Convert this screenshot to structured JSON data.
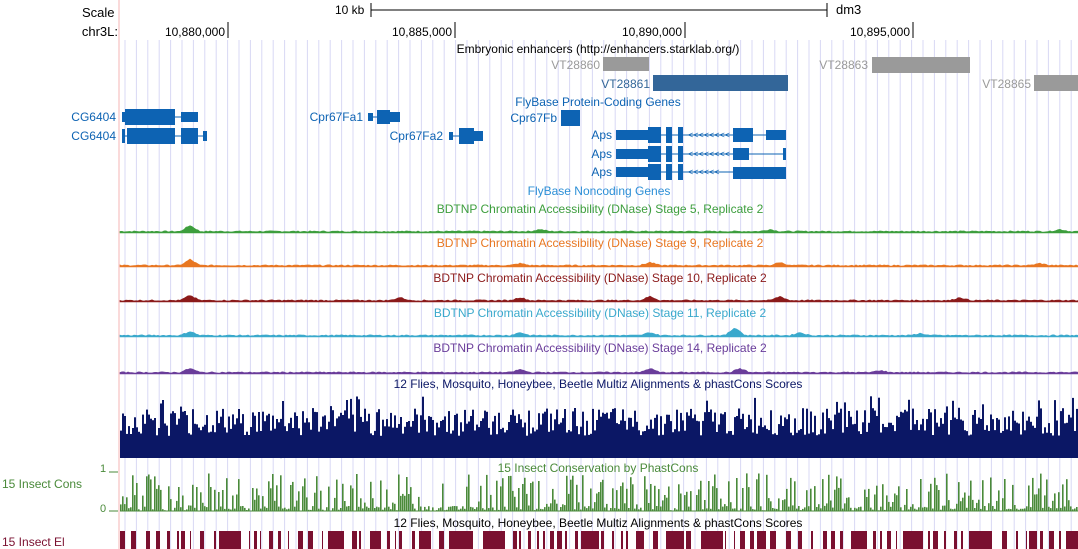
{
  "header": {
    "scale_label": "Scale",
    "scale_value": "10 kb",
    "assembly": "dm3",
    "chrom_label": "chr3L:",
    "positions": [
      "10,880,000",
      "10,885,000",
      "10,890,000",
      "10,895,000"
    ]
  },
  "tracks": {
    "enhancers": {
      "title": "Embryonic enhancers (http://enhancers.starklab.org/)",
      "items": [
        {
          "name": "VT28860",
          "highlight": false
        },
        {
          "name": "VT28861",
          "highlight": true
        },
        {
          "name": "VT28863",
          "highlight": false
        },
        {
          "name": "VT28865",
          "highlight": false
        }
      ]
    },
    "genes": {
      "title": "FlyBase Protein-Coding Genes",
      "items": [
        {
          "name": "CG6404"
        },
        {
          "name": "CG6404"
        },
        {
          "name": "Cpr67Fa1"
        },
        {
          "name": "Cpr67Fa2"
        },
        {
          "name": "Cpr67Fb"
        },
        {
          "name": "Aps"
        },
        {
          "name": "Aps"
        },
        {
          "name": "Aps"
        }
      ]
    },
    "noncoding": {
      "title": "FlyBase Noncoding Genes"
    },
    "dnase": [
      {
        "title": "BDTNP Chromatin Accessibility (DNase) Stage 5, Replicate 2",
        "color": "#3d9e3d"
      },
      {
        "title": "BDTNP Chromatin Accessibility (DNase) Stage 9, Replicate 2",
        "color": "#e87722"
      },
      {
        "title": "BDTNP Chromatin Accessibility (DNase) Stage 10, Replicate 2",
        "color": "#8b1a1a"
      },
      {
        "title": "BDTNP Chromatin Accessibility (DNase) Stage 11, Replicate 2",
        "color": "#3aa9cc"
      },
      {
        "title": "BDTNP Chromatin Accessibility (DNase) Stage 14, Replicate 2",
        "color": "#6a3d9a"
      }
    ],
    "multiz": {
      "title": "12 Flies, Mosquito, Honeybee, Beetle Multiz Alignments & phastCons Scores",
      "color": "#0b1765"
    },
    "phastcons": {
      "title": "15 Insect Conservation by PhastCons",
      "side_label": "15 Insect Cons",
      "ymax": "1",
      "ymin": "0",
      "color": "#4a8a3a"
    },
    "elements": {
      "title": "12 Flies, Mosquito, Honeybee, Beetle Multiz Alignments & phastCons Scores",
      "side_label": "15 Insect El",
      "color": "#7a1030"
    }
  },
  "colors": {
    "gene": "#0d63b3",
    "enhancer_gray": "#9a9a9a",
    "enhancer_highlight": "#336699",
    "grid": "#d4d4f6",
    "left_edge": "#f4b5b5"
  }
}
